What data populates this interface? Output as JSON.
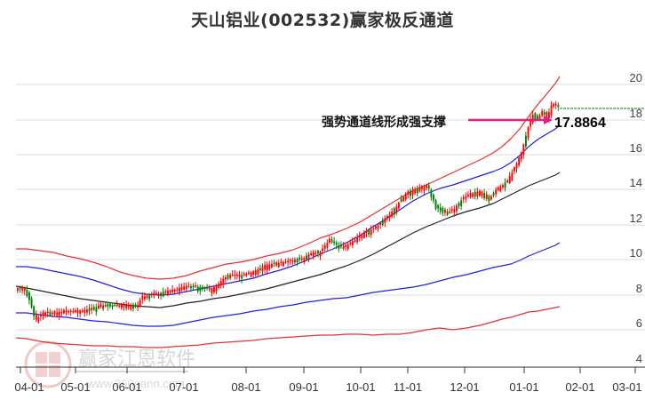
{
  "header": {
    "title": "天山铝业(002532)赢家极反通道"
  },
  "annotation": {
    "text": "强势通道线形成强支撑",
    "value_label": "17.8864",
    "arrow_color": "#e0207a"
  },
  "watermark": {
    "brand": "赢家江恩软件",
    "url": "www.360gann.com",
    "seal_chars": [
      "江",
      "赢",
      "恩",
      "家"
    ]
  },
  "colors": {
    "up_candle": "#ff0000",
    "down_candle": "#008000",
    "outer_band": "#e83030",
    "inner_band": "#2020e0",
    "mid_line": "#222222",
    "grid": "#dddddd",
    "last_price_line": "#008000"
  },
  "chart_data": {
    "type": "candlestick",
    "title": "天山铝业(002532)赢家极反通道",
    "xlabel": "",
    "ylabel": "",
    "ylim": [
      4,
      21
    ],
    "y_ticks": [
      4,
      6,
      8,
      10,
      12,
      14,
      16,
      18,
      20
    ],
    "x_ticks": [
      "04-01",
      "05-01",
      "06-01",
      "07-01",
      "08-01",
      "09-01",
      "10-01",
      "11-01",
      "12-01",
      "01-01",
      "02-01",
      "03-01"
    ],
    "grid": true,
    "last_price": 18.6,
    "annotation_value": 17.8864,
    "series": [
      {
        "name": "upper_outer_band",
        "color": "#e83030",
        "points": [
          [
            "04-01",
            10.7
          ],
          [
            "05-01",
            10.3
          ],
          [
            "06-01",
            9.4
          ],
          [
            "07-01",
            9.1
          ],
          [
            "08-01",
            9.9
          ],
          [
            "09-01",
            11.0
          ],
          [
            "10-01",
            12.8
          ],
          [
            "11-01",
            14.6
          ],
          [
            "12-01",
            16.3
          ],
          [
            "01-01",
            18.2
          ],
          [
            "01-20",
            20.5
          ]
        ]
      },
      {
        "name": "upper_inner_band",
        "color": "#2020e0",
        "points": [
          [
            "04-01",
            9.7
          ],
          [
            "05-01",
            9.2
          ],
          [
            "06-01",
            8.3
          ],
          [
            "07-01",
            8.2
          ],
          [
            "08-01",
            8.8
          ],
          [
            "09-01",
            9.7
          ],
          [
            "10-01",
            11.0
          ],
          [
            "11-01",
            12.5
          ],
          [
            "12-01",
            13.9
          ],
          [
            "01-01",
            15.6
          ],
          [
            "01-20",
            17.6
          ]
        ]
      },
      {
        "name": "middle_line",
        "color": "#222222",
        "points": [
          [
            "04-01",
            8.5
          ],
          [
            "05-01",
            8.0
          ],
          [
            "06-01",
            7.5
          ],
          [
            "07-01",
            7.5
          ],
          [
            "08-01",
            8.0
          ],
          [
            "09-01",
            8.7
          ],
          [
            "10-01",
            9.8
          ],
          [
            "11-01",
            10.9
          ],
          [
            "12-01",
            12.3
          ],
          [
            "01-01",
            13.4
          ],
          [
            "01-20",
            14.9
          ]
        ]
      },
      {
        "name": "lower_inner_band",
        "color": "#2020e0",
        "points": [
          [
            "04-01",
            7.0
          ],
          [
            "05-01",
            6.8
          ],
          [
            "06-01",
            6.3
          ],
          [
            "07-01",
            6.3
          ],
          [
            "08-01",
            6.8
          ],
          [
            "09-01",
            7.3
          ],
          [
            "10-01",
            7.9
          ],
          [
            "11-01",
            8.3
          ],
          [
            "12-01",
            9.0
          ],
          [
            "01-01",
            10.0
          ],
          [
            "01-20",
            11.0
          ]
        ]
      },
      {
        "name": "lower_outer_band",
        "color": "#e83030",
        "points": [
          [
            "04-01",
            5.6
          ],
          [
            "05-01",
            5.3
          ],
          [
            "06-01",
            5.0
          ],
          [
            "07-01",
            5.0
          ],
          [
            "08-01",
            5.3
          ],
          [
            "09-01",
            5.6
          ],
          [
            "10-01",
            5.8
          ],
          [
            "11-01",
            5.9
          ],
          [
            "12-01",
            6.3
          ],
          [
            "01-01",
            6.9
          ],
          [
            "01-20",
            7.4
          ]
        ]
      },
      {
        "name": "price_close",
        "color": "#ff0000",
        "points": [
          [
            "04-01",
            8.4
          ],
          [
            "04-10",
            8.3
          ],
          [
            "04-20",
            6.8
          ],
          [
            "05-01",
            6.9
          ],
          [
            "05-15",
            7.0
          ],
          [
            "06-01",
            7.5
          ],
          [
            "06-15",
            7.5
          ],
          [
            "07-01",
            8.2
          ],
          [
            "07-15",
            8.0
          ],
          [
            "08-01",
            9.1
          ],
          [
            "08-15",
            9.3
          ],
          [
            "09-01",
            9.7
          ],
          [
            "09-15",
            10.3
          ],
          [
            "10-01",
            10.5
          ],
          [
            "10-15",
            11.4
          ],
          [
            "11-01",
            12.8
          ],
          [
            "11-15",
            14.0
          ],
          [
            "12-01",
            12.5
          ],
          [
            "12-15",
            13.5
          ],
          [
            "01-01",
            15.4
          ],
          [
            "01-10",
            18.0
          ],
          [
            "01-20",
            18.6
          ]
        ]
      }
    ]
  }
}
